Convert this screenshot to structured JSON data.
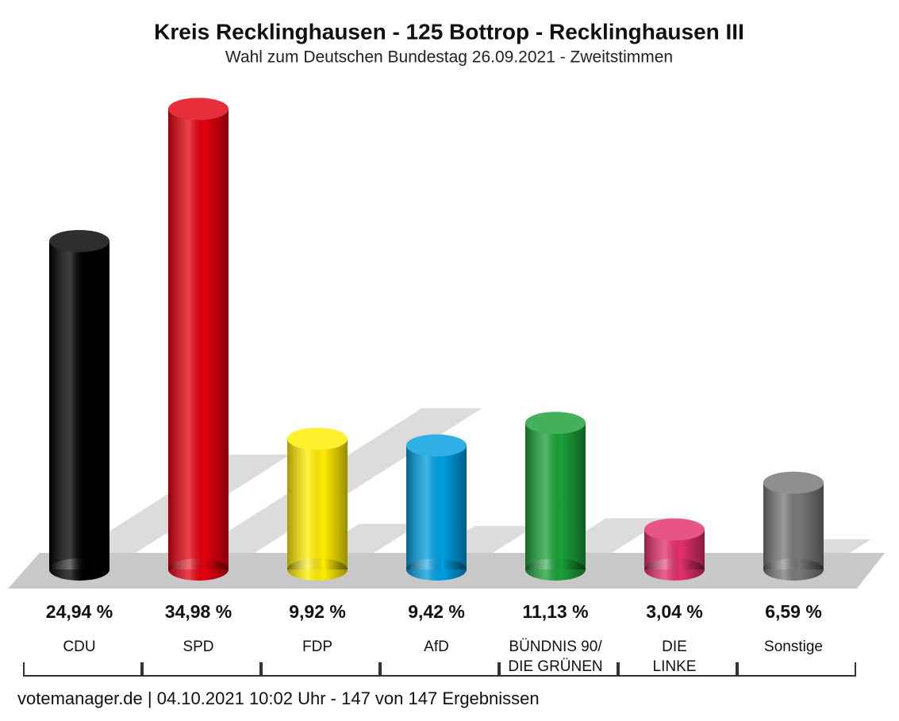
{
  "chart_data": {
    "type": "bar",
    "title": "Kreis Recklinghausen - 125 Bottrop - Recklinghausen III",
    "subtitle": "Wahl zum Deutschen Bundestag 26.09.2021  - Zweitstimmen",
    "categories": [
      "CDU",
      "SPD",
      "FDP",
      "AfD",
      "BÜNDNIS 90/\nDIE GRÜNEN",
      "DIE\nLINKE",
      "Sonstige"
    ],
    "values": [
      24.94,
      34.98,
      9.92,
      9.42,
      11.13,
      3.04,
      6.59
    ],
    "value_labels": [
      "24,94 %",
      "34,98 %",
      "9,92 %",
      "9,42 %",
      "11,13 %",
      "3,04 %",
      "6,59 %"
    ],
    "colors": [
      "#000000",
      "#e3000f",
      "#ffed00",
      "#009ee0",
      "#1aa037",
      "#e3306a",
      "#777777"
    ],
    "footer": "votemanager.de | 04.10.2021 10:02 Uhr - 147 von 147 Ergebnissen"
  }
}
